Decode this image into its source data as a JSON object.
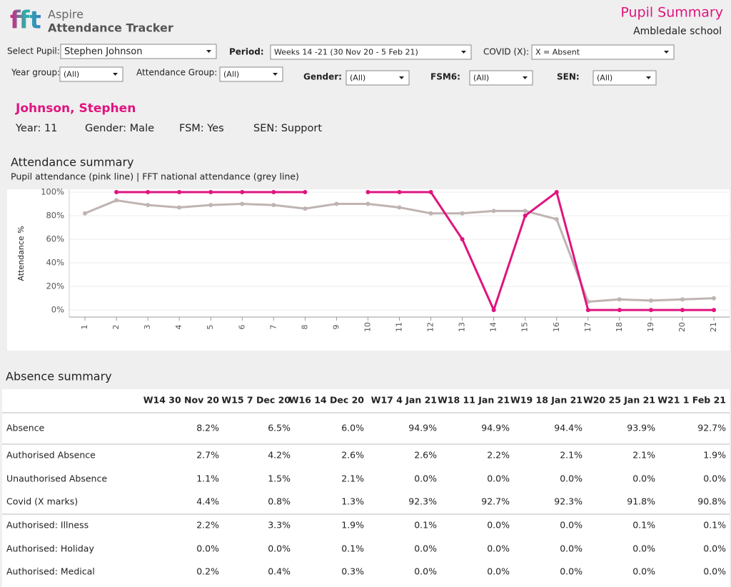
{
  "header": {
    "logo": "fft",
    "brand": "Aspire",
    "product": "Attendance Tracker",
    "title": "Pupil Summary",
    "school": "Ambledale school"
  },
  "filters": [
    {
      "label": "Select Pupil:",
      "value": "Stephen Johnson"
    },
    {
      "label": "Period:",
      "value": "Weeks 14 -21 (30 Nov 20 - 5 Feb 21)"
    },
    {
      "label": "COVID (X):",
      "value": "X = Absent"
    },
    {
      "label": "Year group:",
      "value": "(All)"
    },
    {
      "label": "Attendance Group:",
      "value": "(All)"
    },
    {
      "label": "Gender:",
      "value": "(All)"
    },
    {
      "label": "FSM6:",
      "value": "(All)"
    },
    {
      "label": "SEN:",
      "value": "(All)"
    }
  ],
  "pupil": {
    "name": "Johnson, Stephen",
    "details": [
      "Year: 11",
      "Gender: Male",
      "FSM: Yes",
      "SEN: Support"
    ]
  },
  "chart_data": {
    "type": "line",
    "title": "Attendance summary",
    "subtitle": "Pupil attendance (pink line)  |  FFT national attendance (grey line)",
    "y_label": "Attendance %",
    "categories": [
      "1",
      "2",
      "3",
      "4",
      "5",
      "6",
      "7",
      "8",
      "9",
      "10",
      "11",
      "12",
      "13",
      "14",
      "15",
      "16",
      "17",
      "18",
      "19",
      "20",
      "21"
    ],
    "series": [
      {
        "color": "#bfb4b2",
        "values": [
          82,
          93,
          89,
          87,
          89,
          90,
          89,
          86,
          90,
          90,
          87,
          82,
          82,
          84,
          84,
          77,
          7,
          9,
          8,
          9,
          10
        ]
      },
      {
        "color": "#e0147f",
        "values": [
          null,
          100,
          100,
          100,
          100,
          100,
          100,
          100,
          null,
          100,
          100,
          100,
          60,
          0,
          80,
          100,
          0,
          0,
          0,
          0,
          0
        ]
      }
    ],
    "ylim": [
      -6,
      100
    ],
    "yticks": [
      {
        "value": 0,
        "label": "0%"
      },
      {
        "value": 20,
        "label": "20%"
      },
      {
        "value": 40,
        "label": "40%"
      },
      {
        "value": 60,
        "label": "60%"
      },
      {
        "value": 80,
        "label": "80%"
      },
      {
        "value": 100,
        "label": "100%"
      }
    ],
    "grid": true
  },
  "table": {
    "title": "Absence summary",
    "columns": [
      "W14 30 Nov 20",
      "W15 7 Dec 20",
      "W16 14 Dec 20",
      "W17 4 Jan 21",
      "W18 11 Jan 21",
      "W19 18 Jan 21",
      "W20 25 Jan 21",
      "W21 1 Feb 21"
    ],
    "rows": [
      [
        "Absence",
        "8.2%",
        "6.5%",
        "6.0%",
        "94.9%",
        "94.9%",
        "94.4%",
        "93.9%",
        "92.7%"
      ],
      [
        "Authorised Absence",
        "2.7%",
        "4.2%",
        "2.6%",
        "2.6%",
        "2.2%",
        "2.1%",
        "2.1%",
        "1.9%"
      ],
      [
        "Unauthorised Absence",
        "1.1%",
        "1.5%",
        "2.1%",
        "0.0%",
        "0.0%",
        "0.0%",
        "0.0%",
        "0.0%"
      ],
      [
        "Covid (X marks)",
        "4.4%",
        "0.8%",
        "1.3%",
        "92.3%",
        "92.7%",
        "92.3%",
        "91.8%",
        "90.8%"
      ],
      [
        "Authorised: Illness",
        "2.2%",
        "3.3%",
        "1.9%",
        "0.1%",
        "0.0%",
        "0.0%",
        "0.1%",
        "0.1%"
      ],
      [
        "Authorised: Holiday",
        "0.0%",
        "0.0%",
        "0.1%",
        "0.0%",
        "0.0%",
        "0.0%",
        "0.0%",
        "0.0%"
      ],
      [
        "Authorised: Medical",
        "0.2%",
        "0.4%",
        "0.3%",
        "0.0%",
        "0.0%",
        "0.0%",
        "0.0%",
        "0.0%"
      ]
    ]
  }
}
